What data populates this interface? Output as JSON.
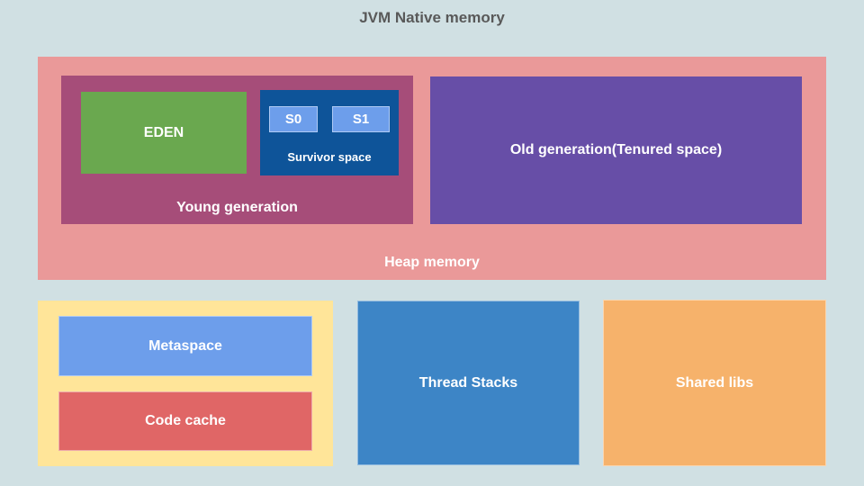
{
  "page": {
    "title": "JVM Native memory",
    "background_color": "#d0e0e3",
    "title_color": "#595959"
  },
  "heap": {
    "label": "Heap memory",
    "color": "#ea9999",
    "young_generation": {
      "label": "Young generation",
      "color": "#a64d79",
      "eden": {
        "label": "EDEN",
        "color": "#6aa84f"
      },
      "survivor_space": {
        "label": "Survivor space",
        "color": "#0e5499",
        "s0": {
          "label": "S0",
          "color": "#6d9eeb"
        },
        "s1": {
          "label": "S1",
          "color": "#6d9eeb"
        }
      }
    },
    "old_generation": {
      "label": "Old generation(Tenured space)",
      "color": "#674ea7"
    }
  },
  "off_heap": {
    "metaspace_group_color": "#ffe599",
    "metaspace": {
      "label": "Metaspace",
      "color": "#6d9eeb"
    },
    "code_cache": {
      "label": "Code cache",
      "color": "#e06666"
    },
    "thread_stacks": {
      "label": "Thread Stacks",
      "color": "#3d85c6"
    },
    "shared_libs": {
      "label": "Shared libs",
      "color": "#f6b26b"
    }
  }
}
